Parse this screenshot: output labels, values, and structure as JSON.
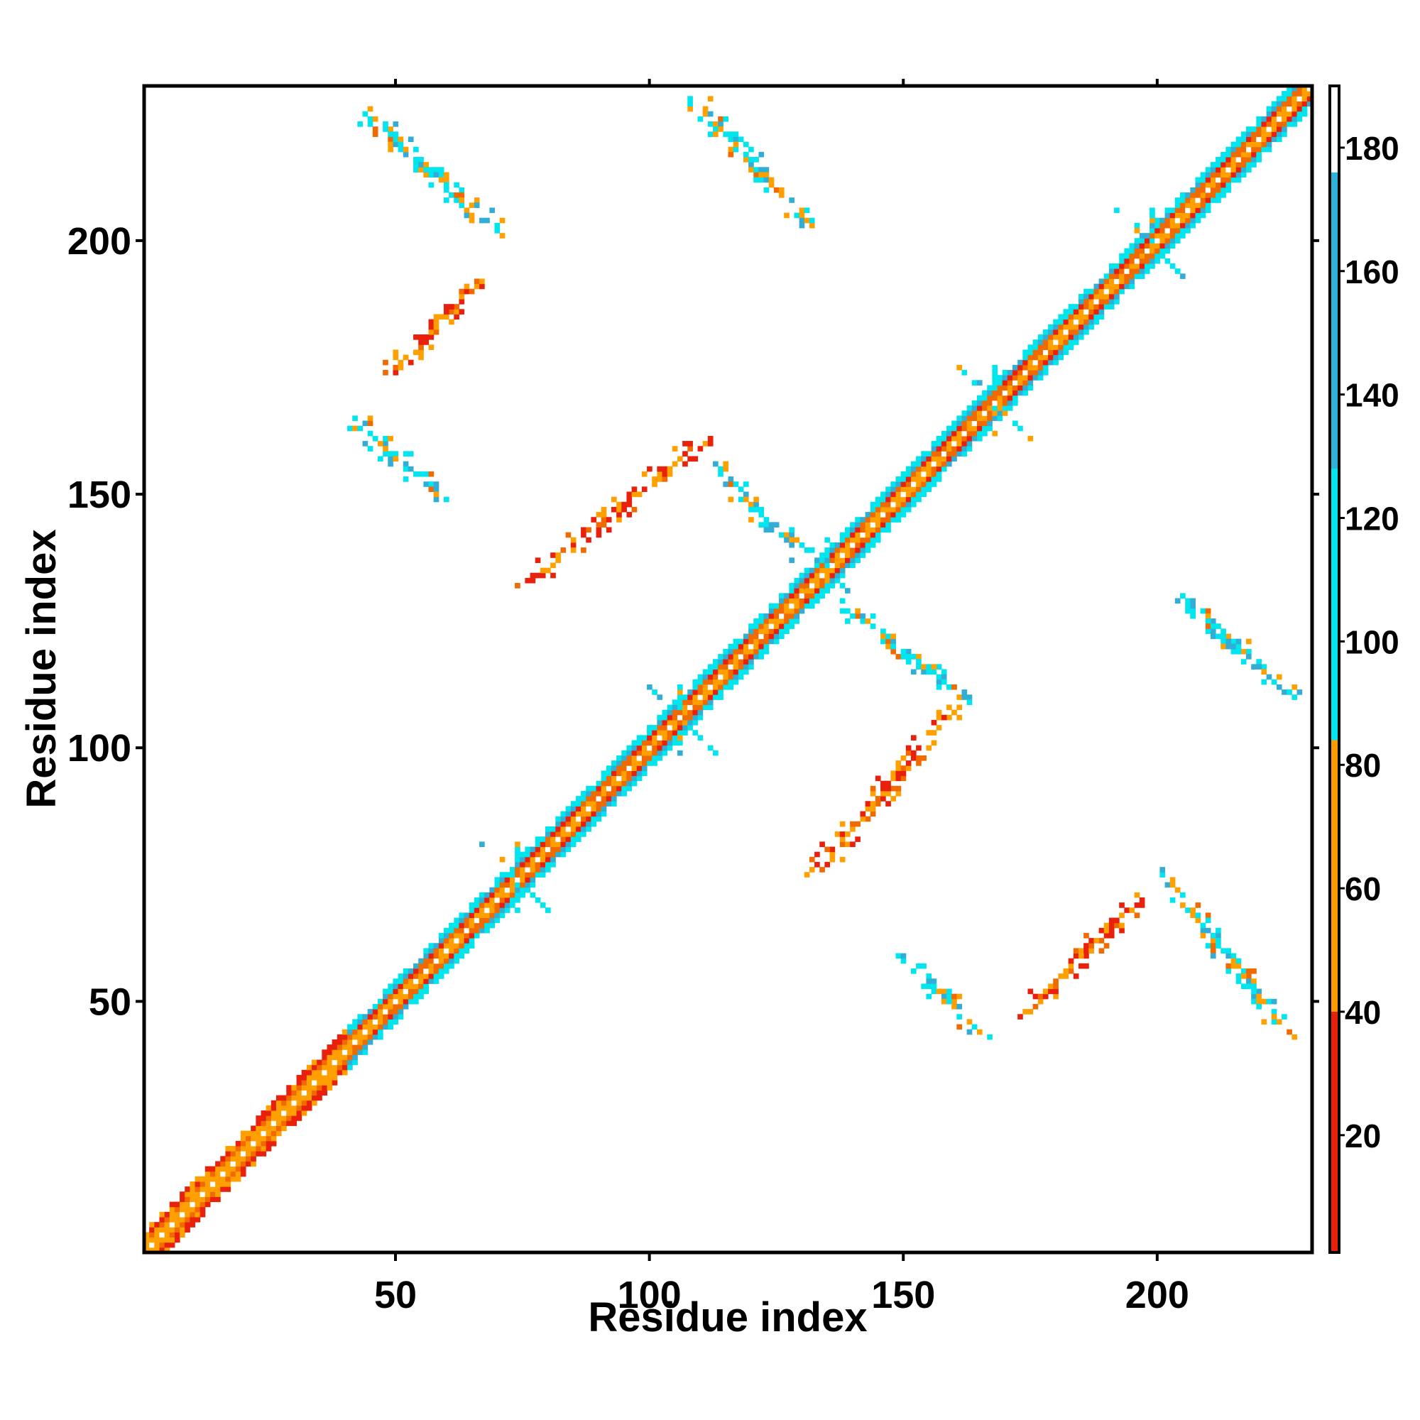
{
  "chart_data": {
    "type": "heatmap",
    "title": "",
    "xlabel": "Residue index",
    "ylabel": "Residue index",
    "xlim": [
      1,
      230
    ],
    "ylim": [
      1,
      230
    ],
    "x_ticks": [
      50,
      100,
      150,
      200
    ],
    "y_ticks": [
      50,
      100,
      150,
      200
    ],
    "colorbar": {
      "range": [
        1,
        190
      ],
      "ticks": [
        20,
        40,
        60,
        80,
        100,
        120,
        140,
        160,
        180
      ],
      "bands": [
        {
          "from": 1,
          "to": 40,
          "color": "#e8200c"
        },
        {
          "from": 40,
          "to": 84,
          "color": "#ff9a00"
        },
        {
          "from": 84,
          "to": 128,
          "color": "#00e5ee"
        },
        {
          "from": 128,
          "to": 176,
          "color": "#2fb2d8"
        },
        {
          "from": 176,
          "to": 190,
          "color": "#ffffff"
        }
      ]
    },
    "colors": {
      "red": "#e8200c",
      "darkorange": "#f06a00",
      "orange": "#ffa000",
      "cyan": "#00e5ee",
      "steelblue": "#32aed6",
      "gray": "#8aa5b0"
    },
    "diagonal_band": {
      "start": 1,
      "end": 230,
      "halfwidth": 4,
      "segments": [
        {
          "start": 1,
          "end": 41,
          "palette": "red-orange"
        },
        {
          "start": 41,
          "end": 230,
          "palette": "cyan-orange"
        }
      ]
    },
    "contact_patterns": [
      {
        "x": [
          110,
          130
        ],
        "y": [
          227,
          204
        ],
        "palette": "cyan-orange",
        "type": "antiparallel"
      },
      {
        "x": [
          43,
          70
        ],
        "y": [
          226,
          202
        ],
        "palette": "cyan-orange",
        "type": "antiparallel"
      },
      {
        "x": [
          49,
          67
        ],
        "y": [
          174,
          193
        ],
        "palette": "red-orange",
        "type": "parallel"
      },
      {
        "x": [
          43,
          58
        ],
        "y": [
          164,
          150
        ],
        "palette": "cyan-orange",
        "type": "antiparallel"
      },
      {
        "x": [
          76,
          110
        ],
        "y": [
          133,
          160
        ],
        "palette": "red-orange",
        "type": "parallel"
      },
      {
        "x": [
          112,
          130
        ],
        "y": [
          156,
          138
        ],
        "palette": "cyan-orange",
        "type": "antiparallel"
      },
      {
        "x": [
          138,
          162
        ],
        "y": [
          128,
          110
        ],
        "palette": "cyan-orange",
        "type": "antiparallel"
      },
      {
        "x": [
          133,
          160
        ],
        "y": [
          76,
          108
        ],
        "palette": "red-orange",
        "type": "parallel"
      },
      {
        "x": [
          204,
          227
        ],
        "y": [
          130,
          110
        ],
        "palette": "cyan-orange",
        "type": "antiparallel"
      },
      {
        "x": [
          151,
          165
        ],
        "y": [
          58,
          44
        ],
        "palette": "cyan-orange",
        "type": "antiparallel"
      },
      {
        "x": [
          174,
          196
        ],
        "y": [
          48,
          70
        ],
        "palette": "red-orange",
        "type": "parallel"
      },
      {
        "x": [
          202,
          225
        ],
        "y": [
          75,
          44
        ],
        "palette": "cyan-orange",
        "type": "antiparallel"
      }
    ],
    "junction_centers": [
      74,
      106,
      135,
      168,
      199
    ]
  }
}
